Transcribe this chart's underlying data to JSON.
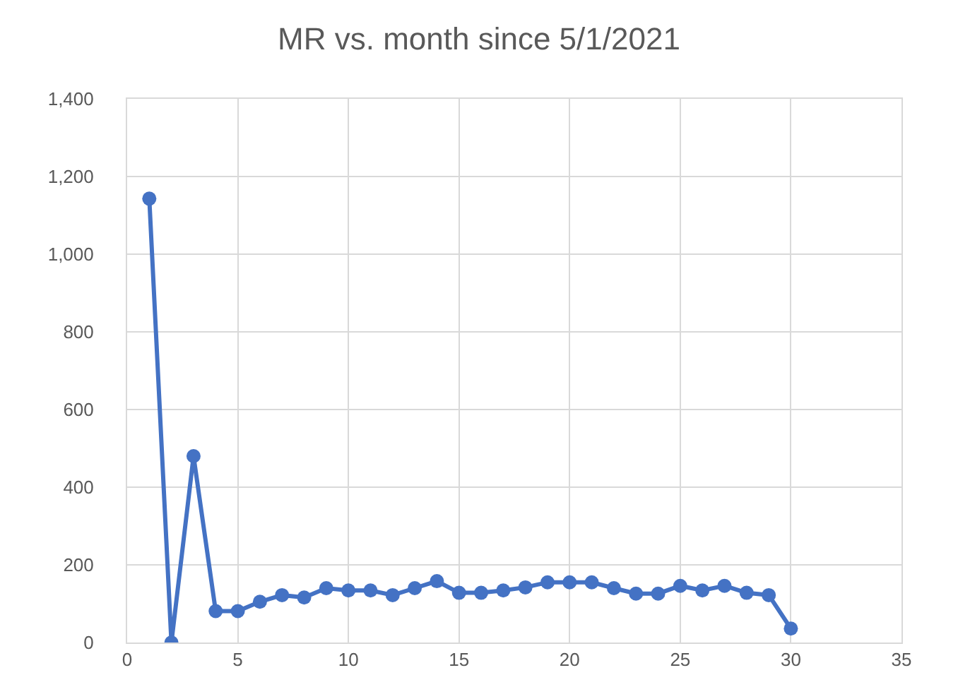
{
  "chart_data": {
    "type": "line",
    "title": "MR vs. month since 5/1/2021",
    "x": [
      1,
      2,
      3,
      4,
      5,
      6,
      7,
      8,
      9,
      10,
      11,
      12,
      13,
      14,
      15,
      16,
      17,
      18,
      19,
      20,
      21,
      22,
      23,
      24,
      25,
      26,
      27,
      28,
      29,
      30
    ],
    "series": [
      {
        "color": "#4472c4",
        "values": [
          1143,
          0,
          480,
          81,
          81,
          105,
          122,
          116,
          140,
          134,
          134,
          122,
          140,
          158,
          128,
          128,
          134,
          142,
          155,
          155,
          155,
          140,
          126,
          126,
          146,
          134,
          146,
          128,
          122,
          36
        ]
      }
    ],
    "xlim": [
      0,
      35
    ],
    "xticks": [
      0,
      5,
      10,
      15,
      20,
      25,
      30,
      35
    ],
    "ylim": [
      0,
      1400
    ],
    "yticks": [
      0,
      {
        "value": 200,
        "label": "200"
      },
      {
        "value": 400,
        "label": "400"
      },
      {
        "value": 600,
        "label": "600"
      },
      {
        "value": 800,
        "label": "800"
      },
      {
        "value": 1000,
        "label": "1,000"
      },
      {
        "value": 1200,
        "label": "1,200"
      },
      {
        "value": 1400,
        "label": "1,400"
      }
    ],
    "grid": true,
    "marker": "circle",
    "line_style": "solid"
  }
}
